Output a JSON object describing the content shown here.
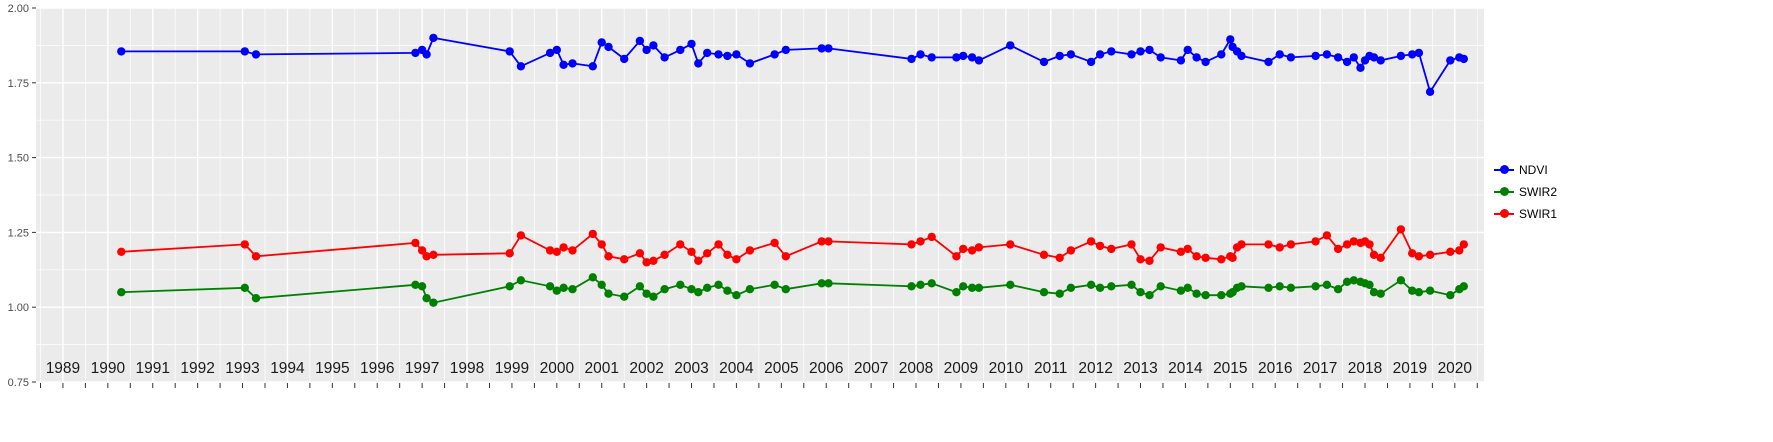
{
  "chart_data": {
    "type": "line",
    "title": "",
    "xlabel": "",
    "ylabel": "",
    "xlim": [
      1988.4,
      2020.65
    ],
    "ylim": [
      0.75,
      2.0
    ],
    "x_ticks": [
      1989,
      1990,
      1991,
      1992,
      1993,
      1994,
      1995,
      1996,
      1997,
      1998,
      1999,
      2000,
      2001,
      2002,
      2003,
      2004,
      2005,
      2006,
      2007,
      2008,
      2009,
      2010,
      2011,
      2012,
      2013,
      2014,
      2015,
      2016,
      2017,
      2018,
      2019,
      2020
    ],
    "y_ticks": [
      0.75,
      1.0,
      1.25,
      1.5,
      1.75,
      2.0
    ],
    "y_tick_labels": [
      "0.75",
      "1.00",
      "1.25",
      "1.50",
      "1.75",
      "2.00"
    ],
    "grid": true,
    "legend_position": "right",
    "x": [
      1990.3,
      1993.05,
      1993.3,
      1996.85,
      1997.0,
      1997.1,
      1997.25,
      1998.95,
      1999.2,
      1999.85,
      2000.0,
      2000.15,
      2000.35,
      2000.8,
      2001.0,
      2001.15,
      2001.5,
      2001.85,
      2002.0,
      2002.15,
      2002.4,
      2002.75,
      2003.0,
      2003.15,
      2003.35,
      2003.6,
      2003.8,
      2004.0,
      2004.3,
      2004.85,
      2005.1,
      2005.9,
      2006.05,
      2007.9,
      2008.1,
      2008.35,
      2008.9,
      2009.05,
      2009.25,
      2009.4,
      2010.1,
      2010.85,
      2011.2,
      2011.45,
      2011.9,
      2012.1,
      2012.35,
      2012.8,
      2013.0,
      2013.2,
      2013.45,
      2013.9,
      2014.05,
      2014.25,
      2014.45,
      2014.8,
      2015.0,
      2015.05,
      2015.15,
      2015.25,
      2015.85,
      2016.1,
      2016.35,
      2016.9,
      2017.15,
      2017.4,
      2017.6,
      2017.75,
      2017.9,
      2018.0,
      2018.1,
      2018.2,
      2018.35,
      2018.8,
      2019.05,
      2019.2,
      2019.45,
      2019.9,
      2020.1,
      2020.2
    ],
    "series": [
      {
        "name": "NDVI",
        "color": "#0000ff",
        "values": [
          1.855,
          1.855,
          1.845,
          1.85,
          1.86,
          1.845,
          1.9,
          1.855,
          1.805,
          1.85,
          1.86,
          1.81,
          1.815,
          1.805,
          1.885,
          1.87,
          1.83,
          1.89,
          1.86,
          1.875,
          1.835,
          1.86,
          1.88,
          1.815,
          1.85,
          1.845,
          1.84,
          1.845,
          1.815,
          1.845,
          1.86,
          1.865,
          1.865,
          1.83,
          1.845,
          1.835,
          1.835,
          1.84,
          1.835,
          1.825,
          1.875,
          1.82,
          1.84,
          1.845,
          1.82,
          1.845,
          1.855,
          1.845,
          1.855,
          1.86,
          1.835,
          1.825,
          1.86,
          1.835,
          1.82,
          1.845,
          1.895,
          1.87,
          1.855,
          1.84,
          1.82,
          1.845,
          1.835,
          1.84,
          1.845,
          1.835,
          1.82,
          1.835,
          1.8,
          1.825,
          1.84,
          1.835,
          1.825,
          1.84,
          1.845,
          1.85,
          1.72,
          1.825,
          1.835,
          1.83
        ]
      },
      {
        "name": "SWIR2",
        "color": "#008000",
        "values": [
          1.05,
          1.065,
          1.03,
          1.075,
          1.07,
          1.03,
          1.015,
          1.07,
          1.09,
          1.07,
          1.055,
          1.065,
          1.06,
          1.1,
          1.075,
          1.045,
          1.035,
          1.07,
          1.045,
          1.035,
          1.06,
          1.075,
          1.06,
          1.05,
          1.065,
          1.075,
          1.055,
          1.04,
          1.06,
          1.075,
          1.06,
          1.08,
          1.08,
          1.07,
          1.075,
          1.08,
          1.05,
          1.07,
          1.065,
          1.065,
          1.075,
          1.05,
          1.045,
          1.065,
          1.075,
          1.065,
          1.07,
          1.075,
          1.05,
          1.04,
          1.07,
          1.055,
          1.065,
          1.045,
          1.04,
          1.04,
          1.045,
          1.05,
          1.065,
          1.07,
          1.065,
          1.07,
          1.065,
          1.07,
          1.075,
          1.06,
          1.085,
          1.09,
          1.085,
          1.08,
          1.075,
          1.05,
          1.045,
          1.09,
          1.055,
          1.05,
          1.055,
          1.04,
          1.06,
          1.07
        ]
      },
      {
        "name": "SWIR1",
        "color": "#ff0000",
        "values": [
          1.185,
          1.21,
          1.17,
          1.215,
          1.19,
          1.17,
          1.175,
          1.18,
          1.24,
          1.19,
          1.185,
          1.2,
          1.19,
          1.245,
          1.21,
          1.17,
          1.16,
          1.18,
          1.15,
          1.155,
          1.175,
          1.21,
          1.185,
          1.155,
          1.18,
          1.21,
          1.175,
          1.16,
          1.19,
          1.215,
          1.17,
          1.22,
          1.22,
          1.21,
          1.22,
          1.235,
          1.17,
          1.195,
          1.19,
          1.2,
          1.21,
          1.175,
          1.165,
          1.19,
          1.22,
          1.205,
          1.195,
          1.21,
          1.16,
          1.155,
          1.2,
          1.185,
          1.195,
          1.17,
          1.165,
          1.16,
          1.17,
          1.165,
          1.2,
          1.21,
          1.21,
          1.2,
          1.21,
          1.22,
          1.24,
          1.195,
          1.21,
          1.22,
          1.215,
          1.22,
          1.21,
          1.175,
          1.165,
          1.26,
          1.18,
          1.17,
          1.175,
          1.185,
          1.19,
          1.21
        ]
      }
    ]
  },
  "legend": {
    "entries": [
      {
        "label": "NDVI",
        "color": "#0000ff"
      },
      {
        "label": "SWIR2",
        "color": "#008000"
      },
      {
        "label": "SWIR1",
        "color": "#ff0000"
      }
    ]
  },
  "colors": {
    "background": "#ffffff",
    "panel": "#ebebeb",
    "gridline": "#ffffff",
    "axis_text": "#4d4d4d",
    "year_text": "#1a1a1a",
    "tick": "#333333"
  }
}
